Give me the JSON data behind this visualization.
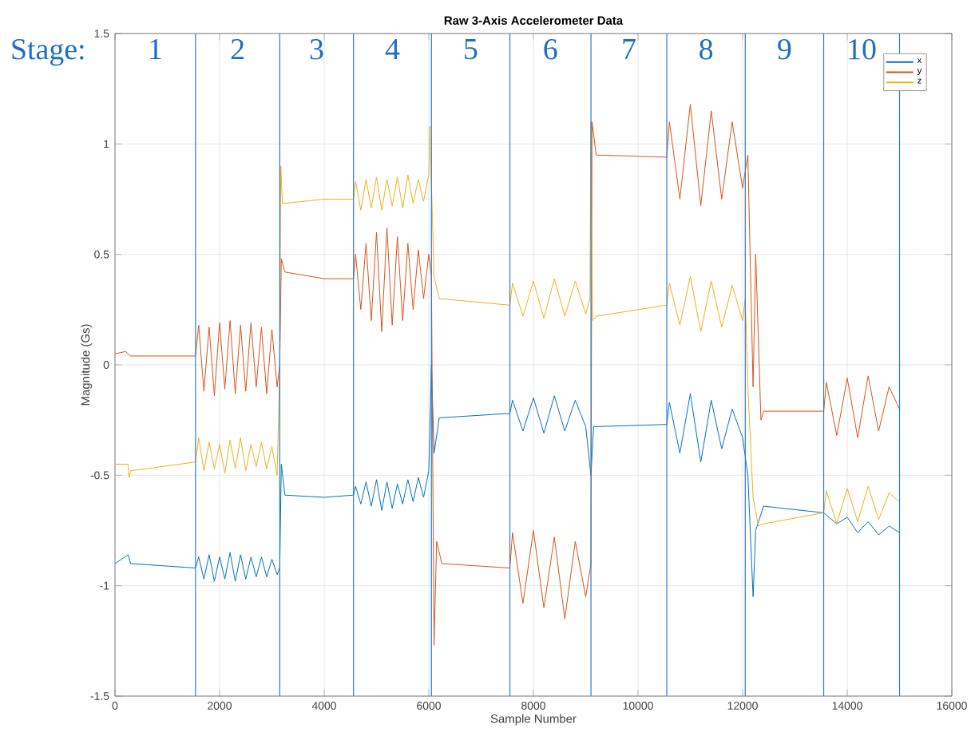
{
  "chart_data": {
    "type": "line",
    "title": "Raw 3-Axis Accelerometer Data",
    "xlabel": "Sample Number",
    "ylabel": "Magnitude (Gs)",
    "xlim": [
      0,
      16000
    ],
    "ylim": [
      -1.5,
      1.5
    ],
    "xticks": [
      0,
      2000,
      4000,
      6000,
      8000,
      10000,
      12000,
      14000,
      16000
    ],
    "yticks": [
      -1.5,
      -1,
      -0.5,
      0,
      0.5,
      1,
      1.5
    ],
    "grid": true,
    "legend": "top right",
    "line_style": "solid",
    "annotations": [
      "Stage:",
      "1",
      "2",
      "3",
      "4",
      "5",
      "6",
      "7",
      "8",
      "9",
      "10"
    ],
    "ref_lines": [
      {
        "axis": "x",
        "value": 1540,
        "label": null,
        "color": "#2e7bcf"
      },
      {
        "axis": "x",
        "value": 3150,
        "label": null,
        "color": "#2e7bcf"
      },
      {
        "axis": "x",
        "value": 4560,
        "label": null,
        "color": "#2e7bcf"
      },
      {
        "axis": "x",
        "value": 6050,
        "label": null,
        "color": "#2e7bcf"
      },
      {
        "axis": "x",
        "value": 7550,
        "label": null,
        "color": "#2e7bcf"
      },
      {
        "axis": "x",
        "value": 9100,
        "label": null,
        "color": "#2e7bcf"
      },
      {
        "axis": "x",
        "value": 10550,
        "label": null,
        "color": "#2e7bcf"
      },
      {
        "axis": "x",
        "value": 12050,
        "label": null,
        "color": "#2e7bcf"
      },
      {
        "axis": "x",
        "value": 13550,
        "label": null,
        "color": "#2e7bcf"
      },
      {
        "axis": "x",
        "value": 15000,
        "label": null,
        "color": "#2e7bcf"
      }
    ],
    "series": [
      {
        "name": "x",
        "color": "#0072bd",
        "x": [
          0,
          250,
          300,
          1540,
          1600,
          1700,
          1800,
          1900,
          2000,
          2100,
          2200,
          2300,
          2400,
          2500,
          2600,
          2700,
          2800,
          2900,
          3000,
          3100,
          3150,
          3180,
          3250,
          4000,
          4560,
          4600,
          4700,
          4800,
          4900,
          5000,
          5100,
          5200,
          5300,
          5400,
          5500,
          5600,
          5700,
          5800,
          5900,
          6000,
          6050,
          6100,
          6200,
          7550,
          7600,
          7800,
          8000,
          8200,
          8400,
          8600,
          8800,
          9000,
          9100,
          9150,
          10550,
          10600,
          10800,
          11000,
          11200,
          11400,
          11600,
          11800,
          12000,
          12100,
          12200,
          12250,
          12400,
          13550,
          13600,
          13800,
          14000,
          14200,
          14400,
          14600,
          14800,
          15000
        ],
        "values": [
          -0.9,
          -0.86,
          -0.9,
          -0.92,
          -0.87,
          -0.97,
          -0.86,
          -0.98,
          -0.87,
          -0.97,
          -0.85,
          -0.98,
          -0.86,
          -0.97,
          -0.87,
          -0.96,
          -0.87,
          -0.96,
          -0.88,
          -0.95,
          -0.92,
          -0.45,
          -0.59,
          -0.6,
          -0.59,
          -0.55,
          -0.63,
          -0.53,
          -0.64,
          -0.52,
          -0.66,
          -0.53,
          -0.65,
          -0.54,
          -0.63,
          -0.52,
          -0.62,
          -0.51,
          -0.6,
          -0.48,
          0.0,
          -0.4,
          -0.24,
          -0.22,
          -0.16,
          -0.3,
          -0.15,
          -0.31,
          -0.14,
          -0.3,
          -0.16,
          -0.28,
          -0.5,
          -0.28,
          -0.27,
          -0.17,
          -0.4,
          -0.13,
          -0.44,
          -0.16,
          -0.38,
          -0.2,
          -0.33,
          -0.5,
          -1.05,
          -0.75,
          -0.64,
          -0.67,
          -0.68,
          -0.72,
          -0.69,
          -0.76,
          -0.71,
          -0.77,
          -0.73,
          -0.76
        ]
      },
      {
        "name": "y",
        "color": "#d95319",
        "x": [
          0,
          200,
          300,
          1540,
          1600,
          1700,
          1800,
          1900,
          2000,
          2100,
          2200,
          2300,
          2400,
          2500,
          2600,
          2700,
          2800,
          2900,
          3000,
          3100,
          3150,
          3180,
          3250,
          4000,
          4560,
          4600,
          4700,
          4800,
          4900,
          5000,
          5100,
          5200,
          5300,
          5400,
          5500,
          5600,
          5700,
          5800,
          5900,
          6000,
          6050,
          6100,
          6150,
          6250,
          7550,
          7600,
          7800,
          8000,
          8200,
          8400,
          8600,
          8800,
          9000,
          9100,
          9120,
          9200,
          10550,
          10600,
          10800,
          11000,
          11200,
          11400,
          11600,
          11800,
          12000,
          12100,
          12200,
          12250,
          12350,
          12400,
          13550,
          13600,
          13800,
          14000,
          14200,
          14400,
          14600,
          14800,
          15000
        ],
        "values": [
          0.05,
          0.06,
          0.04,
          0.04,
          0.18,
          -0.12,
          0.17,
          -0.14,
          0.19,
          -0.11,
          0.2,
          -0.13,
          0.18,
          -0.12,
          0.19,
          -0.1,
          0.17,
          -0.13,
          0.16,
          -0.1,
          0.0,
          0.48,
          0.42,
          0.39,
          0.39,
          0.5,
          0.25,
          0.55,
          0.2,
          0.6,
          0.15,
          0.62,
          0.18,
          0.58,
          0.2,
          0.55,
          0.25,
          0.52,
          0.3,
          0.5,
          0.4,
          -1.27,
          -0.8,
          -0.9,
          -0.92,
          -0.76,
          -1.08,
          -0.75,
          -1.1,
          -0.78,
          -1.15,
          -0.8,
          -1.05,
          -0.9,
          1.1,
          0.95,
          0.94,
          1.1,
          0.75,
          1.18,
          0.72,
          1.15,
          0.75,
          1.1,
          0.8,
          0.95,
          -0.1,
          0.5,
          -0.25,
          -0.21,
          -0.21,
          -0.08,
          -0.32,
          -0.06,
          -0.33,
          -0.05,
          -0.3,
          -0.1,
          -0.2
        ]
      },
      {
        "name": "z",
        "color": "#edb120",
        "x": [
          0,
          250,
          270,
          300,
          1540,
          1600,
          1700,
          1800,
          1900,
          2000,
          2100,
          2200,
          2300,
          2400,
          2500,
          2600,
          2700,
          2800,
          2900,
          3000,
          3100,
          3150,
          3170,
          3200,
          4000,
          4560,
          4600,
          4700,
          4800,
          4900,
          5000,
          5100,
          5200,
          5300,
          5400,
          5500,
          5600,
          5700,
          5800,
          5900,
          6000,
          6020,
          6100,
          6200,
          7550,
          7600,
          7800,
          8000,
          8200,
          8400,
          8600,
          8800,
          9000,
          9080,
          9100,
          9130,
          9200,
          10550,
          10600,
          10800,
          11000,
          11200,
          11400,
          11600,
          11800,
          12000,
          12050,
          12100,
          12200,
          12300,
          12400,
          13550,
          13600,
          13800,
          14000,
          14200,
          14400,
          14600,
          14800,
          15000
        ],
        "values": [
          -0.45,
          -0.45,
          -0.51,
          -0.48,
          -0.44,
          -0.33,
          -0.48,
          -0.35,
          -0.47,
          -0.36,
          -0.49,
          -0.34,
          -0.47,
          -0.33,
          -0.48,
          -0.36,
          -0.46,
          -0.35,
          -0.47,
          -0.37,
          -0.5,
          0.0,
          0.9,
          0.73,
          0.75,
          0.75,
          0.83,
          0.7,
          0.84,
          0.71,
          0.85,
          0.7,
          0.84,
          0.72,
          0.85,
          0.71,
          0.86,
          0.73,
          0.84,
          0.74,
          0.86,
          1.08,
          0.4,
          0.3,
          0.27,
          0.37,
          0.22,
          0.38,
          0.21,
          0.39,
          0.22,
          0.38,
          0.23,
          0.3,
          1.1,
          0.2,
          0.22,
          0.27,
          0.37,
          0.18,
          0.4,
          0.15,
          0.38,
          0.17,
          0.36,
          0.2,
          0.3,
          -0.1,
          -0.6,
          -0.73,
          -0.72,
          -0.67,
          -0.57,
          -0.72,
          -0.56,
          -0.71,
          -0.55,
          -0.7,
          -0.58,
          -0.62
        ]
      }
    ]
  }
}
